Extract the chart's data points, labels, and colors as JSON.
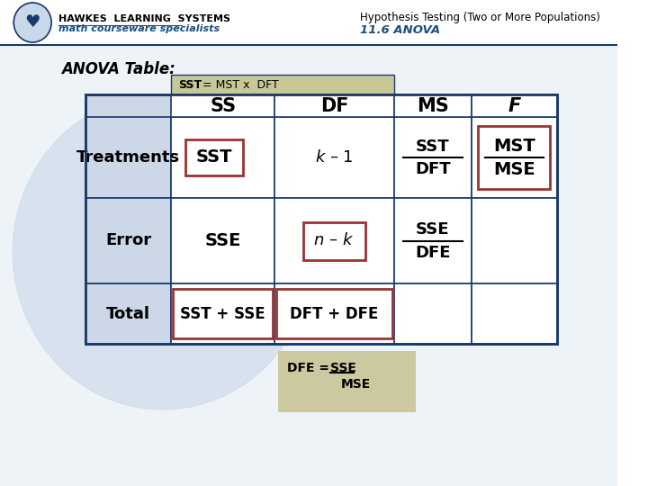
{
  "title_left_line1": "HAWKES  LEARNING  SYSTEMS",
  "title_left_line2": "math courseware specialists",
  "title_right_line1": "Hypothesis Testing (Two or More Populations)",
  "title_right_line2": "11.6 ANOVA",
  "anova_label": "ANOVA Table:",
  "col_headers": [
    "SS",
    "DF",
    "MS",
    "F"
  ],
  "row_labels": [
    "Treatments",
    "Error",
    "Total"
  ],
  "bg_color": "#ffffff",
  "header_bg": "#c8c896",
  "table_bg": "#ccd8e8",
  "cell_bg": "#ffffff",
  "border_color": "#1a3a6b",
  "red_box_color": "#993333",
  "tan_bg": "#ccc8a0",
  "text_dark": "#000000",
  "text_blue": "#1a3a6b",
  "italic_blue": "#1a5080"
}
